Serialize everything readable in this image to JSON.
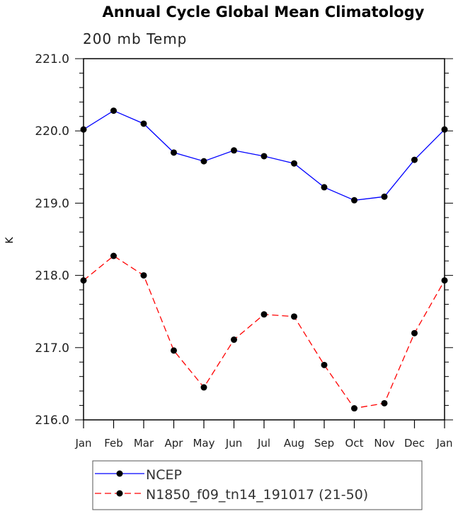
{
  "chart_data": {
    "type": "line",
    "title": "Annual Cycle Global Mean Climatology",
    "subtitle": "200 mb Temp",
    "xlabel": "",
    "ylabel": "K",
    "categories": [
      "Jan",
      "Feb",
      "Mar",
      "Apr",
      "May",
      "Jun",
      "Jul",
      "Aug",
      "Sep",
      "Oct",
      "Nov",
      "Dec",
      "Jan"
    ],
    "ylim": [
      216.0,
      221.0
    ],
    "yticks": [
      "216.0",
      "217.0",
      "218.0",
      "219.0",
      "220.0",
      "221.0"
    ],
    "grid": false,
    "legend_position": "bottom",
    "series": [
      {
        "name": "NCEP",
        "color": "#0000ff",
        "dash": "solid",
        "values": [
          220.02,
          220.28,
          220.1,
          219.7,
          219.58,
          219.73,
          219.65,
          219.55,
          219.22,
          219.04,
          219.09,
          219.6,
          220.02
        ]
      },
      {
        "name": "N1850_f09_tn14_191017 (21-50)",
        "color": "#ff0000",
        "dash": "dashed",
        "values": [
          217.93,
          218.27,
          218.0,
          216.96,
          216.45,
          217.11,
          217.46,
          217.43,
          216.76,
          216.16,
          216.23,
          217.2,
          217.93
        ]
      }
    ]
  }
}
